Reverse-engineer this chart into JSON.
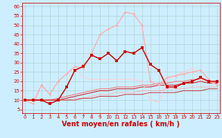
{
  "background_color": "#cceeff",
  "grid_color": "#aacccc",
  "xlabel": "Vent moyen/en rafales ( km/h )",
  "xlabel_color": "#cc0000",
  "xlabel_fontsize": 7,
  "xticks": [
    0,
    1,
    2,
    3,
    4,
    5,
    6,
    7,
    8,
    9,
    10,
    11,
    12,
    13,
    14,
    15,
    16,
    17,
    18,
    19,
    20,
    21,
    22,
    23
  ],
  "yticks": [
    5,
    10,
    15,
    20,
    25,
    30,
    35,
    40,
    45,
    50,
    55,
    60
  ],
  "xlim": [
    -0.3,
    23.3
  ],
  "ylim": [
    3,
    62
  ],
  "series": [
    {
      "name": "rafales_light_pink",
      "x": [
        0,
        1,
        2,
        3,
        4,
        5,
        6,
        7,
        8,
        9,
        10,
        11,
        12,
        13,
        14,
        15,
        16,
        17,
        18,
        19,
        20,
        21,
        22,
        23
      ],
      "y": [
        10,
        8,
        18,
        13,
        20,
        24,
        28,
        27,
        35,
        45,
        48,
        50,
        57,
        56,
        50,
        20,
        18,
        22,
        23,
        24,
        25,
        26,
        21,
        18
      ],
      "color": "#ffaaaa",
      "lw": 0.9,
      "marker": "D",
      "ms": 1.8,
      "zorder": 3
    },
    {
      "name": "rafales_dark_red",
      "x": [
        0,
        1,
        2,
        3,
        4,
        5,
        6,
        7,
        8,
        9,
        10,
        11,
        12,
        13,
        14,
        15,
        16,
        17,
        18,
        19,
        20,
        21,
        22,
        23
      ],
      "y": [
        10,
        10,
        10,
        8,
        10,
        17,
        26,
        28,
        34,
        32,
        35,
        31,
        36,
        35,
        38,
        29,
        26,
        17,
        17,
        19,
        20,
        22,
        20,
        20
      ],
      "color": "#cc0000",
      "lw": 1.1,
      "marker": "s",
      "ms": 2.2,
      "zorder": 4
    },
    {
      "name": "moyen_flat1",
      "x": [
        0,
        1,
        2,
        3,
        4,
        5,
        6,
        7,
        8,
        9,
        10,
        11,
        12,
        13,
        14,
        15,
        16,
        17,
        18,
        19,
        20,
        21,
        22,
        23
      ],
      "y": [
        10,
        10,
        10,
        10,
        11,
        12,
        13,
        14,
        15,
        16,
        16,
        17,
        17,
        17,
        18,
        18,
        19,
        19,
        20,
        20,
        21,
        21,
        20,
        19
      ],
      "color": "#ff6666",
      "lw": 0.7,
      "marker": null,
      "ms": 0,
      "zorder": 2
    },
    {
      "name": "moyen_flat2",
      "x": [
        0,
        1,
        2,
        3,
        4,
        5,
        6,
        7,
        8,
        9,
        10,
        11,
        12,
        13,
        14,
        15,
        16,
        17,
        18,
        19,
        20,
        21,
        22,
        23
      ],
      "y": [
        10,
        10,
        10,
        10,
        10,
        11,
        12,
        13,
        14,
        15,
        15,
        16,
        16,
        16,
        17,
        17,
        18,
        18,
        18,
        19,
        19,
        20,
        19,
        19
      ],
      "color": "#cc0000",
      "lw": 0.65,
      "marker": null,
      "ms": 0,
      "zorder": 2
    },
    {
      "name": "moyen_flat3",
      "x": [
        0,
        1,
        2,
        3,
        4,
        5,
        6,
        7,
        8,
        9,
        10,
        11,
        12,
        13,
        14,
        15,
        16,
        17,
        18,
        19,
        20,
        21,
        22,
        23
      ],
      "y": [
        10,
        10,
        10,
        10,
        10,
        10,
        11,
        11,
        12,
        13,
        13,
        14,
        14,
        14,
        15,
        15,
        15,
        16,
        16,
        16,
        17,
        17,
        17,
        17
      ],
      "color": "#ffaaaa",
      "lw": 0.6,
      "marker": null,
      "ms": 0,
      "zorder": 2
    },
    {
      "name": "moyen_flat4",
      "x": [
        0,
        1,
        2,
        3,
        4,
        5,
        6,
        7,
        8,
        9,
        10,
        11,
        12,
        13,
        14,
        15,
        16,
        17,
        18,
        19,
        20,
        21,
        22,
        23
      ],
      "y": [
        10,
        10,
        10,
        10,
        10,
        10,
        10,
        11,
        11,
        12,
        12,
        12,
        13,
        13,
        13,
        14,
        14,
        14,
        14,
        15,
        15,
        15,
        16,
        16
      ],
      "color": "#cc0000",
      "lw": 0.55,
      "marker": null,
      "ms": 0,
      "zorder": 2
    },
    {
      "name": "raf_light2",
      "x": [
        0,
        1,
        2,
        3,
        4,
        5,
        6,
        7,
        8,
        9,
        10,
        11,
        12,
        13,
        14,
        15,
        16,
        17,
        18,
        19,
        20,
        21,
        22,
        23
      ],
      "y": [
        10,
        10,
        18,
        13,
        20,
        24,
        27,
        22,
        21,
        21,
        21,
        21,
        21,
        21,
        20,
        10,
        9,
        21,
        23,
        25,
        27,
        21,
        20,
        18
      ],
      "color": "#ffcccc",
      "lw": 0.7,
      "marker": "D",
      "ms": 1.3,
      "zorder": 2
    }
  ],
  "wind_arrows": {
    "x": [
      0,
      1,
      2,
      3,
      4,
      5,
      6,
      7,
      8,
      9,
      10,
      11,
      12,
      13,
      14,
      15,
      16,
      17,
      18,
      19,
      20,
      21,
      22,
      23
    ],
    "y": [
      2,
      2,
      2,
      2,
      2,
      2,
      2,
      2,
      2,
      2,
      2,
      2,
      2,
      2,
      2,
      2,
      2,
      2,
      2,
      2,
      2,
      2,
      2,
      2
    ],
    "color": "#cc0000"
  }
}
